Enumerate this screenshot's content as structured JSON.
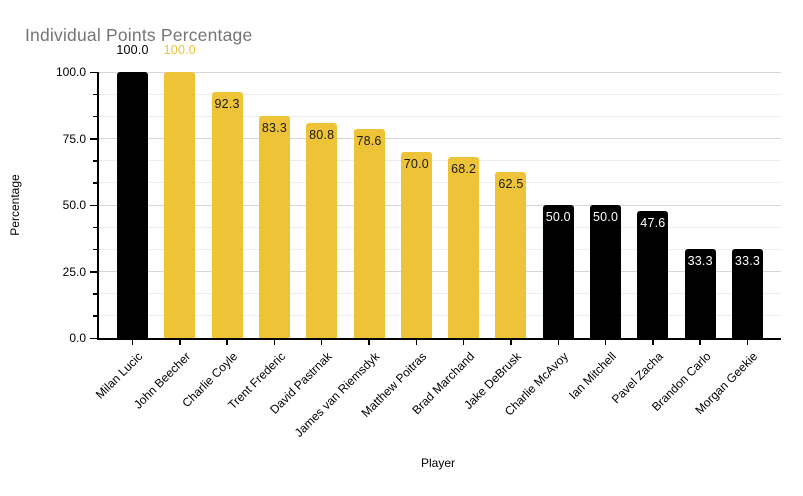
{
  "colors": {
    "bar_black": "#000000",
    "bar_gold": "#efc337",
    "title_gray": "#757575",
    "grid_major": "#d6d6d6",
    "grid_minor": "#ececec",
    "label_on_black": "#ffffff",
    "label_on_gold": "#1a1a1a",
    "axis": "#000000"
  },
  "chart_data": {
    "type": "bar",
    "title": "Individual Points Percentage",
    "xlabel": "Player",
    "ylabel": "Percentage",
    "ylim": [
      0,
      100
    ],
    "yticks": [
      0,
      25,
      50,
      75,
      100
    ],
    "ytick_labels": [
      "0.0",
      "25.0",
      "50.0",
      "75.0",
      "100.0"
    ],
    "minor_gridlines_per_major": 2,
    "grid": true,
    "legend_position": "none",
    "categories": [
      "Milan Lucic",
      "John Beecher",
      "Charlie Coyle",
      "Trent Frederic",
      "David Pastrnak",
      "James van Riemsdyk",
      "Matthew Poitras",
      "Brad Marchand",
      "Jake DeBrusk",
      "Charlie McAvoy",
      "Ian Mitchell",
      "Pavel Zacha",
      "Brandon Carlo",
      "Morgan Geekie"
    ],
    "values": [
      100.0,
      100.0,
      92.3,
      83.3,
      80.8,
      78.6,
      70.0,
      68.2,
      62.5,
      50.0,
      50.0,
      47.6,
      33.3,
      33.3
    ],
    "value_labels": [
      "100.0",
      "100.0",
      "92.3",
      "83.3",
      "80.8",
      "78.6",
      "70.0",
      "68.2",
      "62.5",
      "50.0",
      "50.0",
      "47.6",
      "33.3",
      "33.3"
    ],
    "bar_colors": [
      "black",
      "gold",
      "gold",
      "gold",
      "gold",
      "gold",
      "gold",
      "gold",
      "gold",
      "black",
      "black",
      "black",
      "black",
      "black"
    ],
    "label_positions": [
      "above",
      "above",
      "inside",
      "inside",
      "inside",
      "inside",
      "inside",
      "inside",
      "inside",
      "inside",
      "inside",
      "inside",
      "inside",
      "inside"
    ]
  }
}
